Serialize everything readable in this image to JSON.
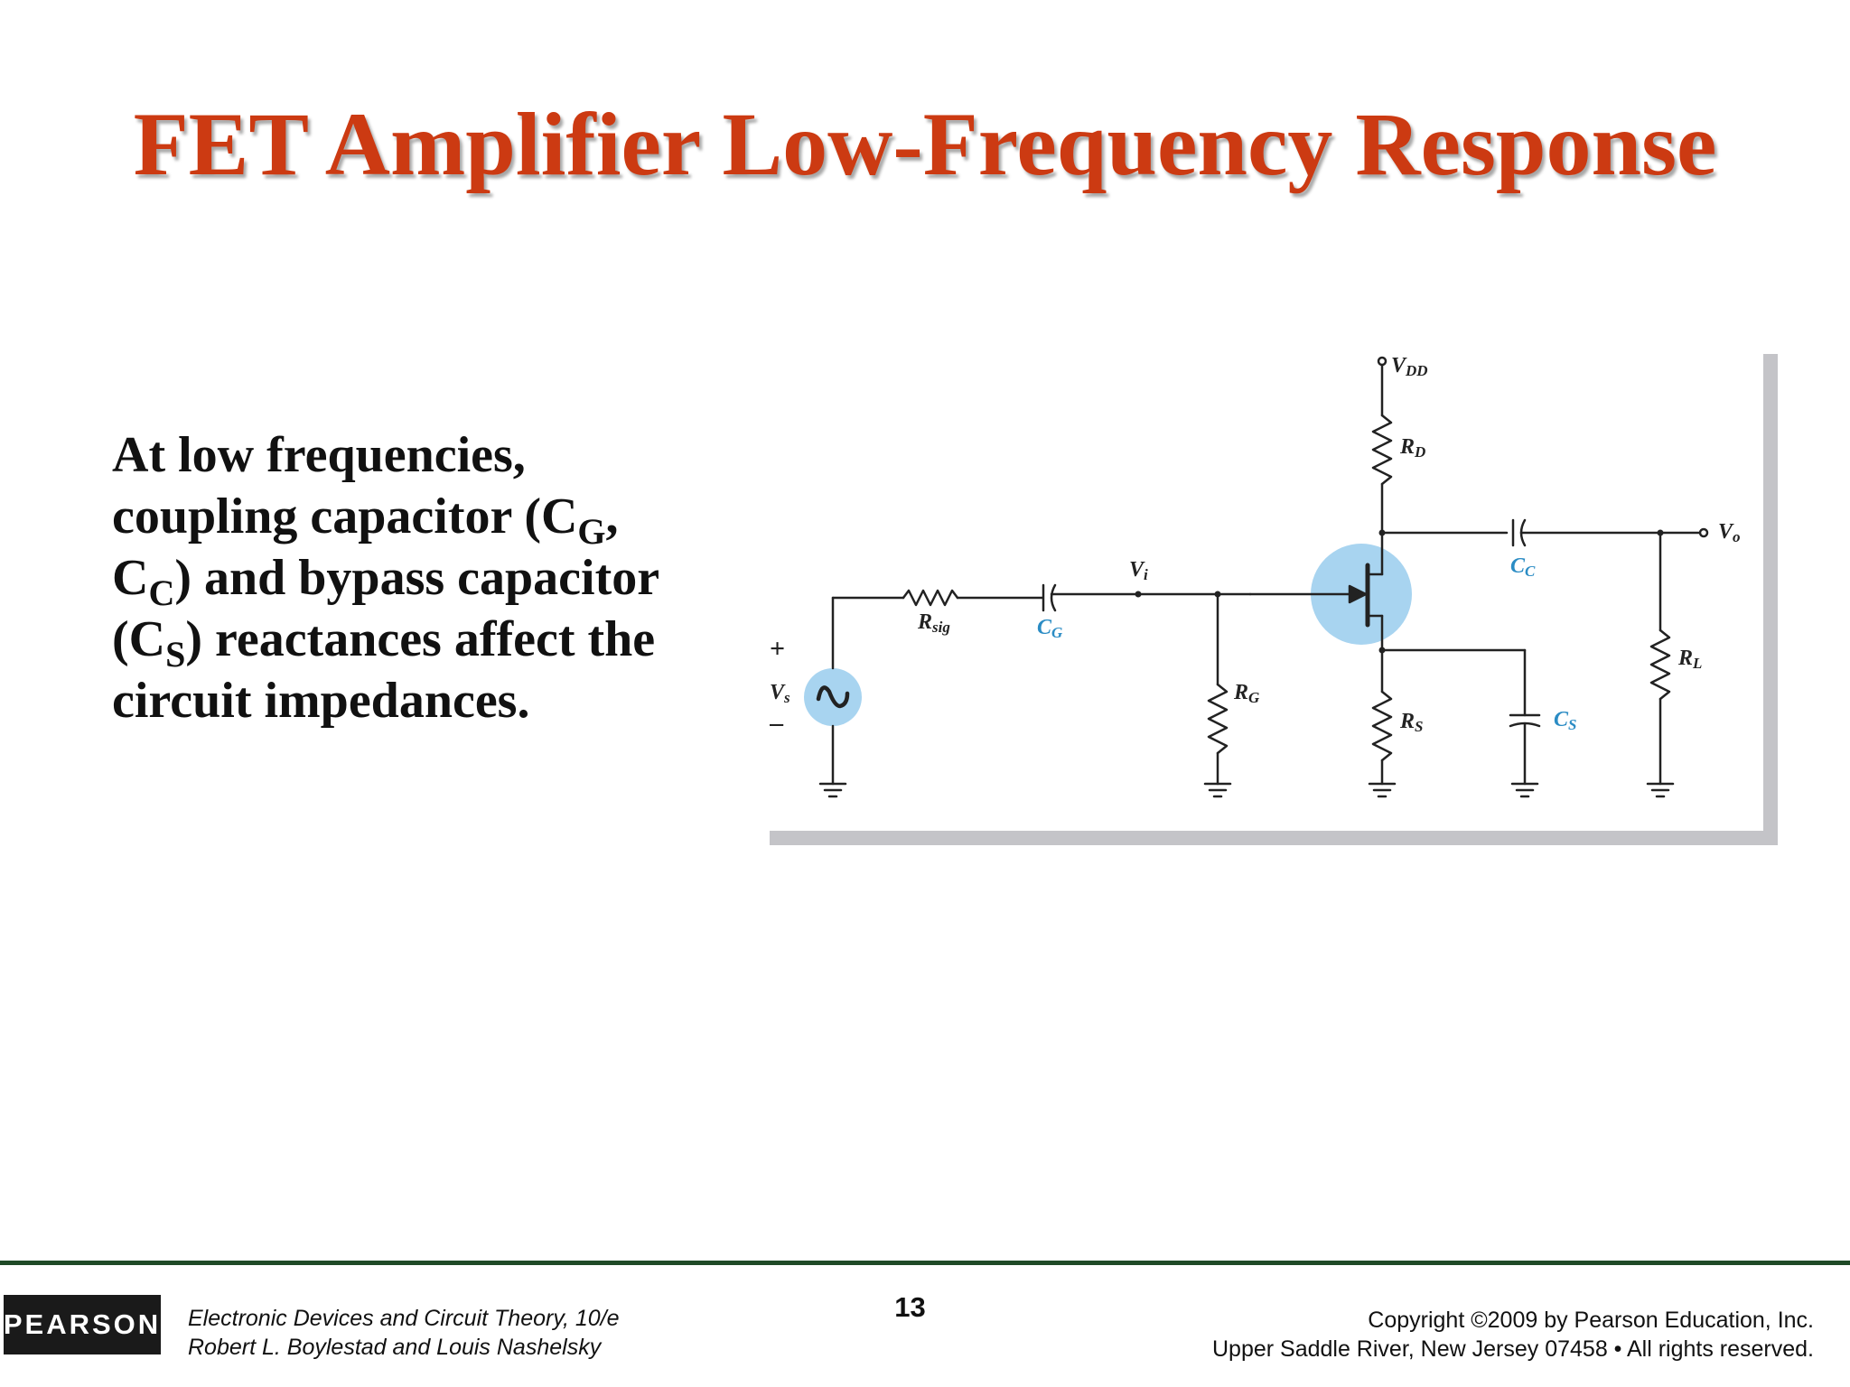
{
  "slide": {
    "title": "FET Amplifier Low-Frequency Response",
    "body": {
      "line1": "At low frequencies,",
      "line2_pre": "coupling capacitor (C",
      "line2_sub": "G",
      "line2_post": ",",
      "line3_pre": "C",
      "line3_sub": "C",
      "line3_post": ") and bypass capacitor",
      "line4_pre": "(C",
      "line4_sub": "S",
      "line4_post": ") reactances affect the",
      "line5": "circuit impedances."
    }
  },
  "circuit": {
    "labels": {
      "vdd_main": "V",
      "vdd_sub": "DD",
      "rd_main": "R",
      "rd_sub": "D",
      "cc_main": "C",
      "cc_sub": "C",
      "vo_main": "V",
      "vo_sub": "o",
      "vi_main": "V",
      "vi_sub": "i",
      "rsig_main": "R",
      "rsig_sub": "sig",
      "cg_main": "C",
      "cg_sub": "G",
      "rg_main": "R",
      "rg_sub": "G",
      "rs_main": "R",
      "rs_sub": "S",
      "cs_main": "C",
      "cs_sub": "S",
      "rl_main": "R",
      "rl_sub": "L",
      "vs_main": "V",
      "vs_sub": "s",
      "plus": "+",
      "minus": "–"
    },
    "colors": {
      "capacitor_label": "#2b8cc4",
      "highlight": "#a8d4f0",
      "wire": "#222222",
      "panel_shadow": "#c4c4c8"
    }
  },
  "footer": {
    "logo": "PEARSON",
    "book_line1": "Electronic Devices and Circuit Theory, 10/e",
    "book_line2": "Robert L. Boylestad and Louis Nashelsky",
    "page_number": "13",
    "copyright_line1": "Copyright ©2009 by Pearson Education, Inc.",
    "copyright_line2": "Upper Saddle River, New Jersey 07458 • All rights reserved."
  }
}
